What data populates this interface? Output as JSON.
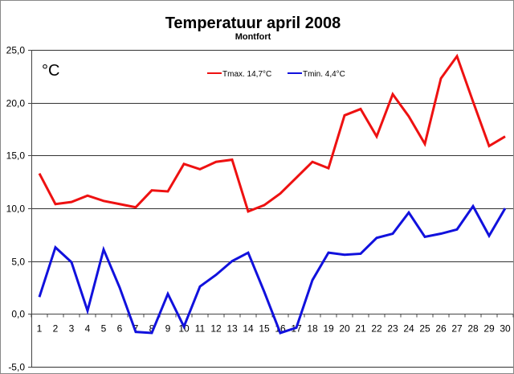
{
  "chart_data": {
    "type": "line",
    "title": "Temperatuur april 2008",
    "subtitle": "Montfort",
    "ylabel": "°C",
    "xlabel": "",
    "ylim": [
      -5,
      25
    ],
    "ystep": 5,
    "ytick_labels": [
      "-5,0",
      "0,0",
      "5,0",
      "10,0",
      "15,0",
      "20,0",
      "25,0"
    ],
    "grid": true,
    "legend_position": "top-center",
    "x": [
      1,
      2,
      3,
      4,
      5,
      6,
      7,
      8,
      9,
      10,
      11,
      12,
      13,
      14,
      15,
      16,
      17,
      18,
      19,
      20,
      21,
      22,
      23,
      24,
      25,
      26,
      27,
      28,
      29,
      30
    ],
    "series": [
      {
        "name": "Tmax. 14,7°C",
        "color": "#ee1111",
        "values": [
          13.3,
          10.4,
          10.6,
          11.2,
          10.7,
          10.4,
          10.1,
          11.7,
          11.6,
          14.2,
          13.7,
          14.4,
          14.6,
          9.7,
          10.3,
          11.4,
          12.9,
          14.4,
          13.8,
          18.8,
          19.4,
          16.8,
          20.8,
          18.7,
          16.1,
          22.3,
          24.4,
          20.1,
          15.9,
          16.8
        ]
      },
      {
        "name": "Tmin. 4,4°C",
        "color": "#1111dd",
        "values": [
          1.6,
          6.3,
          4.9,
          0.3,
          6.1,
          2.5,
          -1.7,
          -1.8,
          1.9,
          -1.2,
          2.6,
          3.7,
          5.0,
          5.8,
          2.1,
          -1.8,
          -1.3,
          3.2,
          5.8,
          5.6,
          5.7,
          7.2,
          7.6,
          9.6,
          7.3,
          7.6,
          8.0,
          10.2,
          7.4,
          10.0
        ]
      }
    ]
  }
}
